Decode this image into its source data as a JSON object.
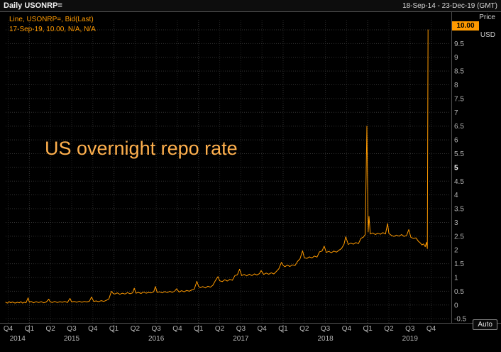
{
  "window": {
    "title": "Daily USONRP=",
    "date_range": "18-Sep-14 - 23-Dec-19 (GMT)"
  },
  "legend": {
    "line1": "Line, USONRP=, Bid(Last)",
    "line2": "17-Sep-19, 10.00, N/A, N/A"
  },
  "annotation": {
    "text": "US overnight repo rate"
  },
  "price_axis": {
    "title": "Price",
    "currency": "USD",
    "last_price": "10.00",
    "auto_button": "Auto"
  },
  "colors": {
    "line": "#ff9a00",
    "annotation": "#ffb04d",
    "badge_bg": "#ff9a00",
    "badge_text": "#000000",
    "axis_text": "#b4b4b4",
    "grid_h": "#343434",
    "grid_v": "#232323",
    "grid_year": "#2d2d2d",
    "divider": "#4d4d4d"
  },
  "chart_data": {
    "type": "line",
    "title": "US overnight repo rate",
    "instrument": "USONRP=",
    "ylabel": "Price (USD)",
    "xlabel": "",
    "grid": true,
    "legend_position": "top-left",
    "xlim": [
      2014.72,
      2019.98
    ],
    "ylim": [
      -0.65,
      10.36
    ],
    "y_ticks": [
      {
        "v": 9.5,
        "label": "9.5"
      },
      {
        "v": 9,
        "label": "9"
      },
      {
        "v": 8.5,
        "label": "8.5"
      },
      {
        "v": 8,
        "label": "8"
      },
      {
        "v": 7.5,
        "label": "7.5"
      },
      {
        "v": 7,
        "label": "7"
      },
      {
        "v": 6.5,
        "label": "6.5"
      },
      {
        "v": 6,
        "label": "6"
      },
      {
        "v": 5.5,
        "label": "5.5"
      },
      {
        "v": 5,
        "label": "5",
        "emphasized": true
      },
      {
        "v": 4.5,
        "label": "4.5"
      },
      {
        "v": 4,
        "label": "4"
      },
      {
        "v": 3.5,
        "label": "3.5"
      },
      {
        "v": 3,
        "label": "3"
      },
      {
        "v": 2.5,
        "label": "2.5"
      },
      {
        "v": 2,
        "label": "2"
      },
      {
        "v": 1.5,
        "label": "1.5"
      },
      {
        "v": 1,
        "label": "1"
      },
      {
        "v": 0.5,
        "label": "0.5"
      },
      {
        "v": 0,
        "label": "0"
      },
      {
        "v": -0.5,
        "label": "-0.5"
      }
    ],
    "x_quarters": [
      {
        "t": 2014.75,
        "label": "Q4"
      },
      {
        "t": 2015.0,
        "label": "Q1"
      },
      {
        "t": 2015.25,
        "label": "Q2"
      },
      {
        "t": 2015.5,
        "label": "Q3"
      },
      {
        "t": 2015.75,
        "label": "Q4"
      },
      {
        "t": 2016.0,
        "label": "Q1"
      },
      {
        "t": 2016.25,
        "label": "Q2"
      },
      {
        "t": 2016.5,
        "label": "Q3"
      },
      {
        "t": 2016.75,
        "label": "Q4"
      },
      {
        "t": 2017.0,
        "label": "Q1"
      },
      {
        "t": 2017.25,
        "label": "Q2"
      },
      {
        "t": 2017.5,
        "label": "Q3"
      },
      {
        "t": 2017.75,
        "label": "Q4"
      },
      {
        "t": 2018.0,
        "label": "Q1"
      },
      {
        "t": 2018.25,
        "label": "Q2"
      },
      {
        "t": 2018.5,
        "label": "Q3"
      },
      {
        "t": 2018.75,
        "label": "Q4"
      },
      {
        "t": 2019.0,
        "label": "Q1"
      },
      {
        "t": 2019.25,
        "label": "Q2"
      },
      {
        "t": 2019.5,
        "label": "Q3"
      },
      {
        "t": 2019.75,
        "label": "Q4"
      }
    ],
    "x_years": [
      {
        "t": 2014.86,
        "label": "2014"
      },
      {
        "t": 2015.5,
        "label": "2015"
      },
      {
        "t": 2016.5,
        "label": "2016"
      },
      {
        "t": 2017.5,
        "label": "2017"
      },
      {
        "t": 2018.5,
        "label": "2018"
      },
      {
        "t": 2019.5,
        "label": "2019"
      }
    ],
    "year_boundaries": [
      2015,
      2016,
      2017,
      2018,
      2019
    ],
    "series": [
      {
        "name": "USONRP= Bid(Last)",
        "color": "#ff9a00",
        "points": [
          [
            2014.72,
            0.1
          ],
          [
            2014.74,
            0.07
          ],
          [
            2014.76,
            0.12
          ],
          [
            2014.78,
            0.08
          ],
          [
            2014.8,
            0.11
          ],
          [
            2014.83,
            0.07
          ],
          [
            2014.86,
            0.1
          ],
          [
            2014.88,
            0.08
          ],
          [
            2014.9,
            0.12
          ],
          [
            2014.92,
            0.07
          ],
          [
            2014.94,
            0.1
          ],
          [
            2014.96,
            0.08
          ],
          [
            2014.985,
            0.26
          ],
          [
            2015.0,
            0.1
          ],
          [
            2015.02,
            0.13
          ],
          [
            2015.05,
            0.08
          ],
          [
            2015.08,
            0.12
          ],
          [
            2015.11,
            0.09
          ],
          [
            2015.14,
            0.12
          ],
          [
            2015.17,
            0.08
          ],
          [
            2015.2,
            0.11
          ],
          [
            2015.23,
            0.21
          ],
          [
            2015.245,
            0.12
          ],
          [
            2015.27,
            0.09
          ],
          [
            2015.3,
            0.13
          ],
          [
            2015.33,
            0.09
          ],
          [
            2015.36,
            0.12
          ],
          [
            2015.39,
            0.1
          ],
          [
            2015.42,
            0.13
          ],
          [
            2015.45,
            0.09
          ],
          [
            2015.48,
            0.24
          ],
          [
            2015.5,
            0.11
          ],
          [
            2015.53,
            0.13
          ],
          [
            2015.56,
            0.1
          ],
          [
            2015.59,
            0.14
          ],
          [
            2015.62,
            0.1
          ],
          [
            2015.65,
            0.13
          ],
          [
            2015.68,
            0.11
          ],
          [
            2015.71,
            0.14
          ],
          [
            2015.735,
            0.29
          ],
          [
            2015.76,
            0.13
          ],
          [
            2015.79,
            0.15
          ],
          [
            2015.82,
            0.12
          ],
          [
            2015.85,
            0.16
          ],
          [
            2015.88,
            0.13
          ],
          [
            2015.91,
            0.17
          ],
          [
            2015.94,
            0.22
          ],
          [
            2015.97,
            0.5
          ],
          [
            2015.99,
            0.42
          ],
          [
            2016.01,
            0.4
          ],
          [
            2016.04,
            0.44
          ],
          [
            2016.07,
            0.39
          ],
          [
            2016.1,
            0.43
          ],
          [
            2016.13,
            0.4
          ],
          [
            2016.16,
            0.45
          ],
          [
            2016.19,
            0.41
          ],
          [
            2016.22,
            0.44
          ],
          [
            2016.24,
            0.61
          ],
          [
            2016.26,
            0.43
          ],
          [
            2016.29,
            0.46
          ],
          [
            2016.32,
            0.42
          ],
          [
            2016.35,
            0.47
          ],
          [
            2016.38,
            0.43
          ],
          [
            2016.41,
            0.46
          ],
          [
            2016.44,
            0.44
          ],
          [
            2016.47,
            0.48
          ],
          [
            2016.49,
            0.67
          ],
          [
            2016.51,
            0.46
          ],
          [
            2016.54,
            0.48
          ],
          [
            2016.57,
            0.44
          ],
          [
            2016.6,
            0.49
          ],
          [
            2016.63,
            0.45
          ],
          [
            2016.66,
            0.5
          ],
          [
            2016.69,
            0.46
          ],
          [
            2016.72,
            0.51
          ],
          [
            2016.74,
            0.59
          ],
          [
            2016.77,
            0.47
          ],
          [
            2016.8,
            0.52
          ],
          [
            2016.83,
            0.48
          ],
          [
            2016.86,
            0.53
          ],
          [
            2016.89,
            0.5
          ],
          [
            2016.92,
            0.55
          ],
          [
            2016.95,
            0.58
          ],
          [
            2016.98,
            0.86
          ],
          [
            2017.0,
            0.68
          ],
          [
            2017.02,
            0.63
          ],
          [
            2017.05,
            0.67
          ],
          [
            2017.08,
            0.62
          ],
          [
            2017.11,
            0.68
          ],
          [
            2017.14,
            0.65
          ],
          [
            2017.17,
            0.72
          ],
          [
            2017.2,
            0.89
          ],
          [
            2017.23,
            1.03
          ],
          [
            2017.25,
            0.88
          ],
          [
            2017.28,
            0.85
          ],
          [
            2017.31,
            0.92
          ],
          [
            2017.34,
            0.87
          ],
          [
            2017.37,
            0.93
          ],
          [
            2017.4,
            0.9
          ],
          [
            2017.43,
            1.07
          ],
          [
            2017.46,
            1.1
          ],
          [
            2017.485,
            1.3
          ],
          [
            2017.51,
            1.07
          ],
          [
            2017.54,
            1.11
          ],
          [
            2017.57,
            1.06
          ],
          [
            2017.6,
            1.12
          ],
          [
            2017.63,
            1.07
          ],
          [
            2017.66,
            1.13
          ],
          [
            2017.69,
            1.09
          ],
          [
            2017.72,
            1.14
          ],
          [
            2017.74,
            1.25
          ],
          [
            2017.77,
            1.11
          ],
          [
            2017.8,
            1.16
          ],
          [
            2017.83,
            1.12
          ],
          [
            2017.86,
            1.17
          ],
          [
            2017.89,
            1.13
          ],
          [
            2017.92,
            1.22
          ],
          [
            2017.95,
            1.32
          ],
          [
            2017.98,
            1.55
          ],
          [
            2018.0,
            1.44
          ],
          [
            2018.02,
            1.39
          ],
          [
            2018.05,
            1.45
          ],
          [
            2018.08,
            1.4
          ],
          [
            2018.11,
            1.46
          ],
          [
            2018.14,
            1.43
          ],
          [
            2018.17,
            1.58
          ],
          [
            2018.2,
            1.68
          ],
          [
            2018.23,
            1.97
          ],
          [
            2018.25,
            1.72
          ],
          [
            2018.28,
            1.69
          ],
          [
            2018.31,
            1.75
          ],
          [
            2018.34,
            1.71
          ],
          [
            2018.37,
            1.78
          ],
          [
            2018.4,
            1.74
          ],
          [
            2018.43,
            1.93
          ],
          [
            2018.46,
            1.96
          ],
          [
            2018.485,
            2.14
          ],
          [
            2018.51,
            1.91
          ],
          [
            2018.54,
            1.95
          ],
          [
            2018.57,
            1.9
          ],
          [
            2018.6,
            1.96
          ],
          [
            2018.63,
            1.92
          ],
          [
            2018.66,
            1.99
          ],
          [
            2018.69,
            2.05
          ],
          [
            2018.72,
            2.21
          ],
          [
            2018.74,
            2.48
          ],
          [
            2018.77,
            2.2
          ],
          [
            2018.8,
            2.25
          ],
          [
            2018.83,
            2.21
          ],
          [
            2018.86,
            2.27
          ],
          [
            2018.89,
            2.23
          ],
          [
            2018.92,
            2.42
          ],
          [
            2018.95,
            2.47
          ],
          [
            2018.97,
            2.56
          ],
          [
            2018.99,
            6.5
          ],
          [
            2019.005,
            2.65
          ],
          [
            2019.015,
            3.22
          ],
          [
            2019.03,
            2.58
          ],
          [
            2019.06,
            2.62
          ],
          [
            2019.09,
            2.56
          ],
          [
            2019.12,
            2.61
          ],
          [
            2019.15,
            2.57
          ],
          [
            2019.18,
            2.63
          ],
          [
            2019.21,
            2.58
          ],
          [
            2019.235,
            2.96
          ],
          [
            2019.25,
            2.6
          ],
          [
            2019.28,
            2.53
          ],
          [
            2019.31,
            2.49
          ],
          [
            2019.34,
            2.54
          ],
          [
            2019.37,
            2.5
          ],
          [
            2019.4,
            2.56
          ],
          [
            2019.43,
            2.49
          ],
          [
            2019.46,
            2.53
          ],
          [
            2019.485,
            2.74
          ],
          [
            2019.51,
            2.46
          ],
          [
            2019.54,
            2.42
          ],
          [
            2019.57,
            2.44
          ],
          [
            2019.6,
            2.31
          ],
          [
            2019.62,
            2.26
          ],
          [
            2019.64,
            2.18
          ],
          [
            2019.66,
            2.22
          ],
          [
            2019.68,
            2.12
          ],
          [
            2019.695,
            2.28
          ],
          [
            2019.705,
            2.05
          ],
          [
            2019.713,
            10.0
          ]
        ]
      }
    ]
  }
}
